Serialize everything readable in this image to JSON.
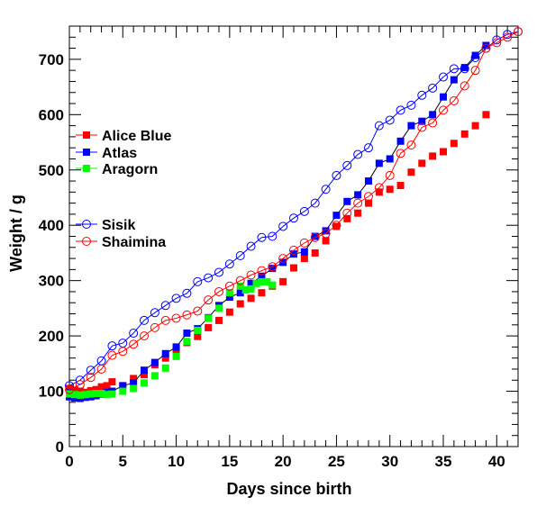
{
  "chart_data": {
    "type": "scatter",
    "title": "",
    "xlabel": "Days since birth",
    "ylabel": "Weight / g",
    "xlim": [
      0,
      42
    ],
    "ylim": [
      0,
      760
    ],
    "x_ticks": [
      0,
      5,
      10,
      15,
      20,
      25,
      30,
      35,
      40
    ],
    "y_ticks": [
      0,
      100,
      200,
      300,
      400,
      500,
      600,
      700
    ],
    "grid": false,
    "legend_placement": "left-middle",
    "series": [
      {
        "name": "Alice Blue",
        "color": "#ff0000",
        "marker": "filled-square",
        "line": false,
        "x": [
          0,
          0.5,
          1,
          1.5,
          2,
          2.5,
          3,
          3.5,
          4,
          5,
          6,
          7,
          8,
          9,
          10,
          11,
          12,
          13,
          14,
          15,
          16,
          17,
          18,
          19,
          20,
          21,
          22,
          23,
          24,
          25,
          26,
          27,
          28,
          29,
          30,
          31,
          32,
          33,
          34,
          35,
          36,
          37,
          38,
          39
        ],
        "y": [
          105,
          102,
          100,
          98,
          101,
          103,
          108,
          110,
          117,
          110,
          123,
          130,
          148,
          160,
          175,
          188,
          199,
          215,
          228,
          243,
          258,
          268,
          278,
          290,
          298,
          323,
          340,
          350,
          372,
          398,
          412,
          422,
          440,
          460,
          465,
          472,
          496,
          512,
          525,
          533,
          548,
          565,
          580,
          600
        ]
      },
      {
        "name": "Atlas",
        "color": "#0000ff",
        "marker": "filled-square",
        "line": true,
        "x": [
          0,
          0.5,
          1,
          1.5,
          2,
          2.5,
          3,
          3.5,
          4,
          5,
          6,
          7,
          8,
          9,
          10,
          11,
          12,
          13,
          14,
          15,
          16,
          17,
          18,
          19,
          20,
          21,
          22,
          23,
          24,
          25,
          26,
          27,
          28,
          29,
          30,
          31,
          32,
          33,
          34,
          35,
          36,
          37,
          38,
          39
        ],
        "y": [
          90,
          88,
          87,
          89,
          90,
          92,
          95,
          98,
          100,
          110,
          115,
          138,
          152,
          168,
          180,
          205,
          213,
          233,
          255,
          270,
          278,
          295,
          308,
          322,
          333,
          348,
          352,
          380,
          390,
          418,
          443,
          455,
          480,
          512,
          520,
          552,
          580,
          588,
          600,
          632,
          663,
          685,
          707,
          725
        ]
      },
      {
        "name": "Aragorn",
        "color": "#00ff00",
        "marker": "filled-square",
        "line": false,
        "x": [
          0,
          0.5,
          1,
          1.5,
          2,
          2.5,
          3,
          3.5,
          4,
          5,
          6,
          7,
          8,
          9,
          10,
          11,
          12,
          13,
          14,
          15,
          16,
          16.5,
          17,
          17.5,
          18,
          18.5,
          19
        ],
        "y": [
          95,
          94,
          93,
          94,
          95,
          96,
          96,
          94,
          95,
          100,
          105,
          115,
          128,
          142,
          163,
          190,
          210,
          232,
          250,
          278,
          290,
          283,
          285,
          295,
          298,
          298,
          292
        ]
      },
      {
        "name": "Sisik",
        "color": "#0000ff",
        "marker": "open-circle",
        "line": true,
        "x": [
          0,
          1,
          2,
          3,
          4,
          5,
          6,
          7,
          8,
          9,
          10,
          11,
          12,
          13,
          14,
          15,
          16,
          17,
          18,
          19,
          20,
          21,
          22,
          23,
          24,
          25,
          26,
          27,
          28,
          29,
          30,
          31,
          32,
          33,
          34,
          35,
          36,
          37,
          38,
          39,
          40,
          41,
          42
        ],
        "y": [
          110,
          120,
          138,
          155,
          182,
          187,
          205,
          228,
          242,
          255,
          268,
          277,
          298,
          305,
          315,
          330,
          345,
          362,
          378,
          380,
          398,
          413,
          425,
          440,
          465,
          490,
          508,
          528,
          540,
          580,
          590,
          608,
          617,
          635,
          648,
          668,
          683,
          683,
          703,
          720,
          735,
          745,
          750
        ]
      },
      {
        "name": "Shaimina",
        "color": "#ff0000",
        "marker": "open-circle",
        "line": true,
        "x": [
          0,
          1,
          2,
          3,
          4,
          5,
          6,
          7,
          8,
          9,
          10,
          11,
          12,
          13,
          14,
          15,
          16,
          17,
          18,
          19,
          20,
          21,
          22,
          23,
          24,
          25,
          26,
          27,
          28,
          29,
          30,
          31,
          32,
          33,
          34,
          35,
          36,
          37,
          38,
          39,
          40,
          41,
          42
        ],
        "y": [
          103,
          112,
          125,
          140,
          165,
          172,
          185,
          200,
          215,
          228,
          232,
          238,
          245,
          265,
          280,
          290,
          300,
          310,
          318,
          325,
          340,
          355,
          368,
          378,
          385,
          400,
          422,
          440,
          452,
          468,
          490,
          530,
          545,
          577,
          585,
          608,
          625,
          652,
          680,
          720,
          730,
          740,
          750
        ]
      }
    ]
  }
}
